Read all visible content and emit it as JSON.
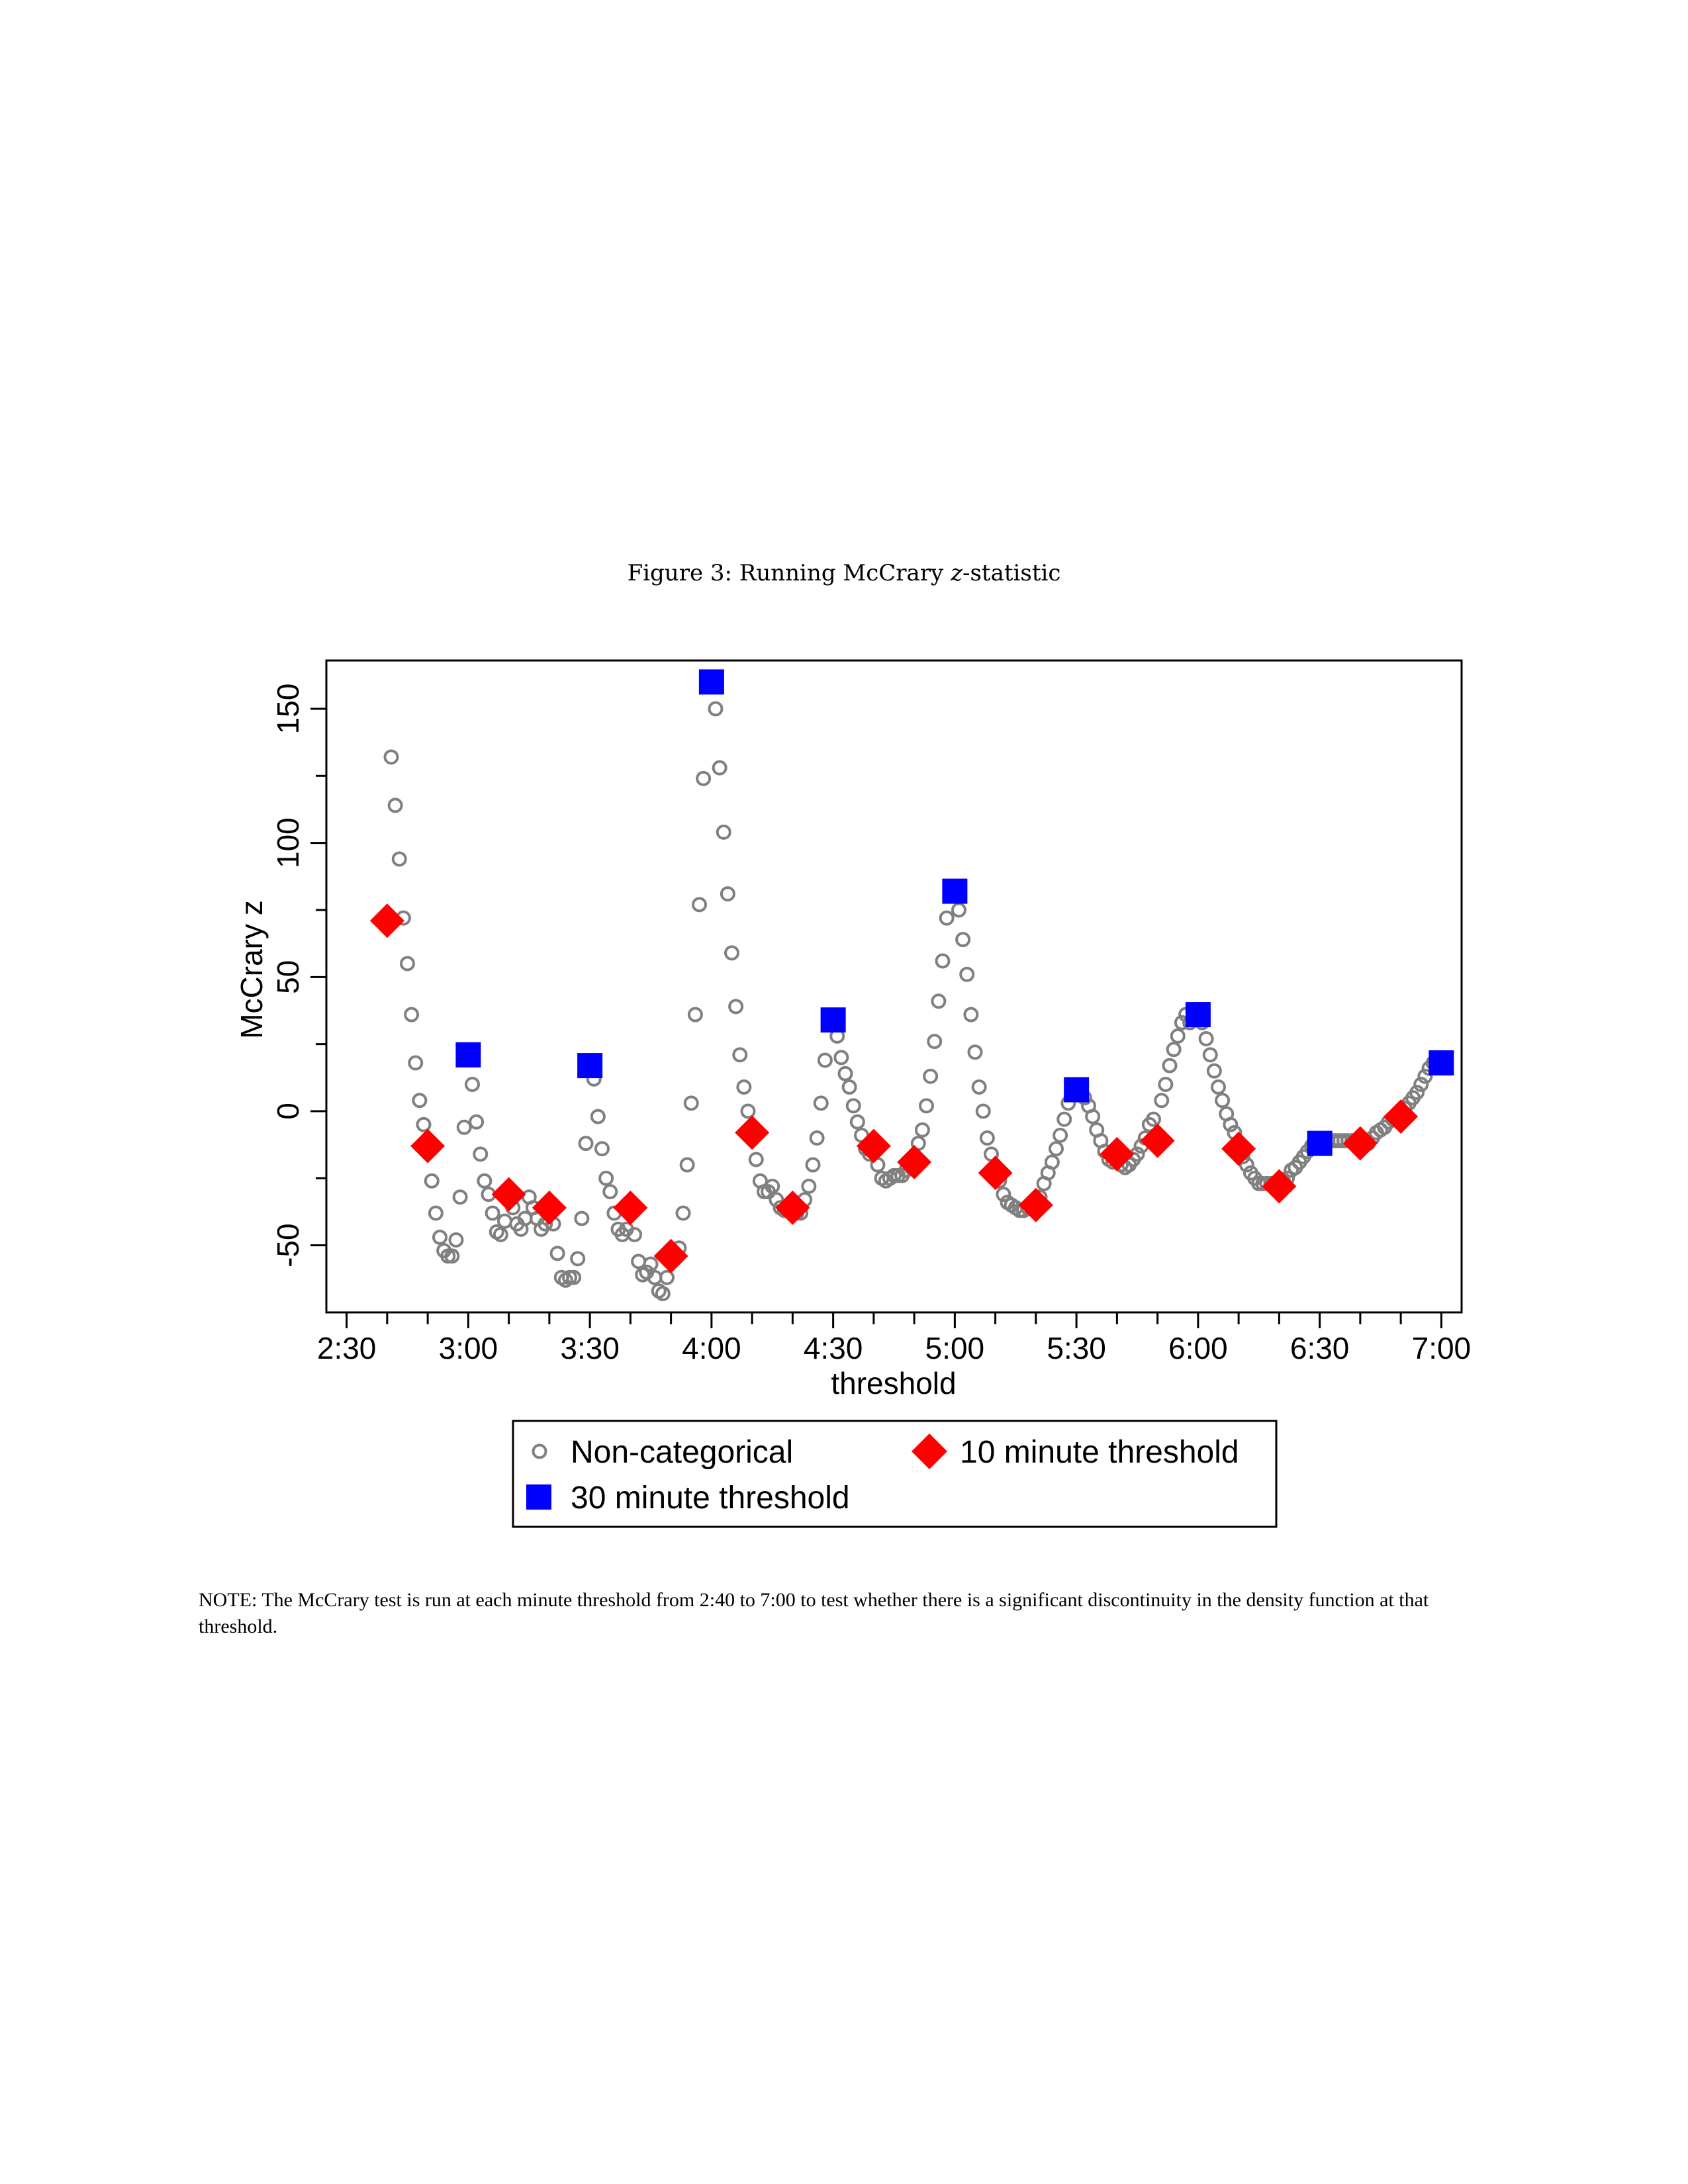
{
  "figure": {
    "caption_prefix": "Figure 3: Running McCrary ",
    "caption_var": "z",
    "caption_suffix": "-statistic",
    "note": "NOTE: The McCrary test is run at each minute threshold from 2:40 to 7:00 to test whether there is a significant discontinuity in the density function at that threshold."
  },
  "colors": {
    "noncat": "#808080",
    "ten": "#ff0000",
    "thirty": "#0000ff"
  },
  "chart_data": {
    "type": "scatter",
    "xlabel": "threshold",
    "ylabel": "McCrary z",
    "xlim": [
      "2:25",
      "7:05"
    ],
    "ylim": [
      -75,
      168
    ],
    "x_tick_labels": [
      "2:30",
      "3:00",
      "3:30",
      "4:00",
      "4:30",
      "5:00",
      "5:30",
      "6:00",
      "6:30",
      "7:00"
    ],
    "y_tick_labels": [
      "-50",
      "0",
      "50",
      "100",
      "150"
    ],
    "legend_position": "bottom",
    "series": [
      {
        "name": "Non-categorical",
        "marker": "hollow-circle",
        "points": [
          [
            "2:41",
            132
          ],
          [
            "2:42",
            114
          ],
          [
            "2:43",
            94
          ],
          [
            "2:44",
            72
          ],
          [
            "2:45",
            55
          ],
          [
            "2:46",
            36
          ],
          [
            "2:47",
            18
          ],
          [
            "2:48",
            4
          ],
          [
            "2:49",
            -5
          ],
          [
            "2:51",
            -26
          ],
          [
            "2:52",
            -38
          ],
          [
            "2:53",
            -47
          ],
          [
            "2:54",
            -52
          ],
          [
            "2:55",
            -54
          ],
          [
            "2:56",
            -54
          ],
          [
            "2:57",
            -48
          ],
          [
            "2:58",
            -32
          ],
          [
            "2:59",
            -6
          ],
          [
            "3:01",
            10
          ],
          [
            "3:02",
            -4
          ],
          [
            "3:03",
            -16
          ],
          [
            "3:04",
            -26
          ],
          [
            "3:05",
            -31
          ],
          [
            "3:06",
            -38
          ],
          [
            "3:07",
            -45
          ],
          [
            "3:08",
            -46
          ],
          [
            "3:09",
            -41
          ],
          [
            "3:11",
            -36
          ],
          [
            "3:12",
            -42
          ],
          [
            "3:13",
            -44
          ],
          [
            "3:14",
            -40
          ],
          [
            "3:15",
            -32
          ],
          [
            "3:16",
            -36
          ],
          [
            "3:17",
            -40
          ],
          [
            "3:18",
            -44
          ],
          [
            "3:19",
            -42
          ],
          [
            "3:21",
            -42
          ],
          [
            "3:22",
            -53
          ],
          [
            "3:23",
            -62
          ],
          [
            "3:24",
            -63
          ],
          [
            "3:25",
            -62
          ],
          [
            "3:26",
            -62
          ],
          [
            "3:27",
            -55
          ],
          [
            "3:28",
            -40
          ],
          [
            "3:29",
            -12
          ],
          [
            "3:31",
            12
          ],
          [
            "3:32",
            -2
          ],
          [
            "3:33",
            -14
          ],
          [
            "3:34",
            -25
          ],
          [
            "3:35",
            -30
          ],
          [
            "3:36",
            -38
          ],
          [
            "3:37",
            -44
          ],
          [
            "3:38",
            -46
          ],
          [
            "3:39",
            -44
          ],
          [
            "3:41",
            -46
          ],
          [
            "3:42",
            -56
          ],
          [
            "3:43",
            -61
          ],
          [
            "3:44",
            -60
          ],
          [
            "3:45",
            -57
          ],
          [
            "3:46",
            -62
          ],
          [
            "3:47",
            -67
          ],
          [
            "3:48",
            -68
          ],
          [
            "3:49",
            -62
          ],
          [
            "3:51",
            -55
          ],
          [
            "3:52",
            -51
          ],
          [
            "3:53",
            -38
          ],
          [
            "3:54",
            -20
          ],
          [
            "3:55",
            3
          ],
          [
            "3:56",
            36
          ],
          [
            "3:57",
            77
          ],
          [
            "3:58",
            124
          ],
          [
            "4:01",
            150
          ],
          [
            "4:02",
            128
          ],
          [
            "4:03",
            104
          ],
          [
            "4:04",
            81
          ],
          [
            "4:05",
            59
          ],
          [
            "4:06",
            39
          ],
          [
            "4:07",
            21
          ],
          [
            "4:08",
            9
          ],
          [
            "4:09",
            0
          ],
          [
            "4:11",
            -18
          ],
          [
            "4:12",
            -26
          ],
          [
            "4:13",
            -30
          ],
          [
            "4:14",
            -30
          ],
          [
            "4:15",
            -28
          ],
          [
            "4:16",
            -33
          ],
          [
            "4:17",
            -36
          ],
          [
            "4:18",
            -37
          ],
          [
            "4:19",
            -37
          ],
          [
            "4:21",
            -38
          ],
          [
            "4:22",
            -38
          ],
          [
            "4:23",
            -33
          ],
          [
            "4:24",
            -28
          ],
          [
            "4:25",
            -20
          ],
          [
            "4:26",
            -10
          ],
          [
            "4:27",
            3
          ],
          [
            "4:28",
            19
          ],
          [
            "4:31",
            28
          ],
          [
            "4:32",
            20
          ],
          [
            "4:33",
            14
          ],
          [
            "4:34",
            9
          ],
          [
            "4:35",
            2
          ],
          [
            "4:36",
            -4
          ],
          [
            "4:37",
            -9
          ],
          [
            "4:38",
            -14
          ],
          [
            "4:39",
            -16
          ],
          [
            "4:41",
            -20
          ],
          [
            "4:42",
            -25
          ],
          [
            "4:43",
            -26
          ],
          [
            "4:44",
            -25
          ],
          [
            "4:45",
            -24
          ],
          [
            "4:46",
            -24
          ],
          [
            "4:47",
            -24
          ],
          [
            "4:48",
            -22
          ],
          [
            "4:49",
            -20
          ],
          [
            "4:51",
            -12
          ],
          [
            "4:52",
            -7
          ],
          [
            "4:53",
            2
          ],
          [
            "4:54",
            13
          ],
          [
            "4:55",
            26
          ],
          [
            "4:56",
            41
          ],
          [
            "4:57",
            56
          ],
          [
            "4:58",
            72
          ],
          [
            "5:01",
            75
          ],
          [
            "5:02",
            64
          ],
          [
            "5:03",
            51
          ],
          [
            "5:04",
            36
          ],
          [
            "5:05",
            22
          ],
          [
            "5:06",
            9
          ],
          [
            "5:07",
            0
          ],
          [
            "5:08",
            -10
          ],
          [
            "5:09",
            -16
          ],
          [
            "5:11",
            -26
          ],
          [
            "5:12",
            -31
          ],
          [
            "5:13",
            -34
          ],
          [
            "5:14",
            -35
          ],
          [
            "5:15",
            -36
          ],
          [
            "5:16",
            -37
          ],
          [
            "5:17",
            -37
          ],
          [
            "5:18",
            -36
          ],
          [
            "5:19",
            -35
          ],
          [
            "5:21",
            -32
          ],
          [
            "5:22",
            -27
          ],
          [
            "5:23",
            -23
          ],
          [
            "5:24",
            -19
          ],
          [
            "5:25",
            -14
          ],
          [
            "5:26",
            -9
          ],
          [
            "5:27",
            -3
          ],
          [
            "5:28",
            3
          ],
          [
            "5:31",
            8
          ],
          [
            "5:32",
            5
          ],
          [
            "5:33",
            2
          ],
          [
            "5:34",
            -2
          ],
          [
            "5:35",
            -7
          ],
          [
            "5:36",
            -11
          ],
          [
            "5:37",
            -15
          ],
          [
            "5:38",
            -18
          ],
          [
            "5:39",
            -19
          ],
          [
            "5:41",
            -20
          ],
          [
            "5:42",
            -21
          ],
          [
            "5:43",
            -20
          ],
          [
            "5:44",
            -18
          ],
          [
            "5:45",
            -16
          ],
          [
            "5:46",
            -13
          ],
          [
            "5:47",
            -10
          ],
          [
            "5:48",
            -5
          ],
          [
            "5:49",
            -3
          ],
          [
            "5:51",
            4
          ],
          [
            "5:52",
            10
          ],
          [
            "5:53",
            17
          ],
          [
            "5:54",
            23
          ],
          [
            "5:55",
            28
          ],
          [
            "5:56",
            33
          ],
          [
            "5:57",
            36
          ],
          [
            "5:58",
            33
          ],
          [
            "6:01",
            33
          ],
          [
            "6:02",
            27
          ],
          [
            "6:03",
            21
          ],
          [
            "6:04",
            15
          ],
          [
            "6:05",
            9
          ],
          [
            "6:06",
            4
          ],
          [
            "6:07",
            -1
          ],
          [
            "6:08",
            -5
          ],
          [
            "6:09",
            -8
          ],
          [
            "6:11",
            -17
          ],
          [
            "6:12",
            -20
          ],
          [
            "6:13",
            -23
          ],
          [
            "6:14",
            -25
          ],
          [
            "6:15",
            -27
          ],
          [
            "6:16",
            -27
          ],
          [
            "6:17",
            -27
          ],
          [
            "6:18",
            -27
          ],
          [
            "6:19",
            -27
          ],
          [
            "6:21",
            -26
          ],
          [
            "6:22",
            -25
          ],
          [
            "6:23",
            -22
          ],
          [
            "6:24",
            -21
          ],
          [
            "6:25",
            -19
          ],
          [
            "6:26",
            -17
          ],
          [
            "6:27",
            -15
          ],
          [
            "6:28",
            -13
          ],
          [
            "6:31",
            -12
          ],
          [
            "6:32",
            -11
          ],
          [
            "6:33",
            -11
          ],
          [
            "6:34",
            -11
          ],
          [
            "6:35",
            -11
          ],
          [
            "6:36",
            -11
          ],
          [
            "6:37",
            -11
          ],
          [
            "6:38",
            -11
          ],
          [
            "6:39",
            -11
          ],
          [
            "6:41",
            -11
          ],
          [
            "6:42",
            -12
          ],
          [
            "6:43",
            -10
          ],
          [
            "6:44",
            -8
          ],
          [
            "6:45",
            -7
          ],
          [
            "6:46",
            -6
          ],
          [
            "6:47",
            -4
          ],
          [
            "6:48",
            -3
          ],
          [
            "6:49",
            -2
          ],
          [
            "6:51",
            1
          ],
          [
            "6:52",
            3
          ],
          [
            "6:53",
            5
          ],
          [
            "6:54",
            7
          ],
          [
            "6:55",
            10
          ],
          [
            "6:56",
            13
          ],
          [
            "6:57",
            16
          ],
          [
            "6:58",
            18
          ]
        ]
      },
      {
        "name": "10 minute threshold",
        "marker": "filled-diamond",
        "points": [
          [
            "2:40",
            71
          ],
          [
            "2:50",
            -13
          ],
          [
            "3:10",
            -31
          ],
          [
            "3:20",
            -36
          ],
          [
            "3:40",
            -36
          ],
          [
            "3:50",
            -54
          ],
          [
            "4:10",
            -8
          ],
          [
            "4:20",
            -36
          ],
          [
            "4:40",
            -13
          ],
          [
            "4:50",
            -19
          ],
          [
            "5:10",
            -23
          ],
          [
            "5:20",
            -35
          ],
          [
            "5:40",
            -16
          ],
          [
            "5:50",
            -11
          ],
          [
            "6:10",
            -14
          ],
          [
            "6:20",
            -28
          ],
          [
            "6:40",
            -12
          ],
          [
            "6:50",
            -2
          ]
        ]
      },
      {
        "name": "30 minute threshold",
        "marker": "filled-square",
        "points": [
          [
            "3:00",
            21
          ],
          [
            "3:30",
            17
          ],
          [
            "4:00",
            160
          ],
          [
            "4:30",
            34
          ],
          [
            "5:00",
            82
          ],
          [
            "5:30",
            8
          ],
          [
            "6:00",
            36
          ],
          [
            "6:30",
            -12
          ],
          [
            "7:00",
            18
          ]
        ]
      }
    ]
  }
}
